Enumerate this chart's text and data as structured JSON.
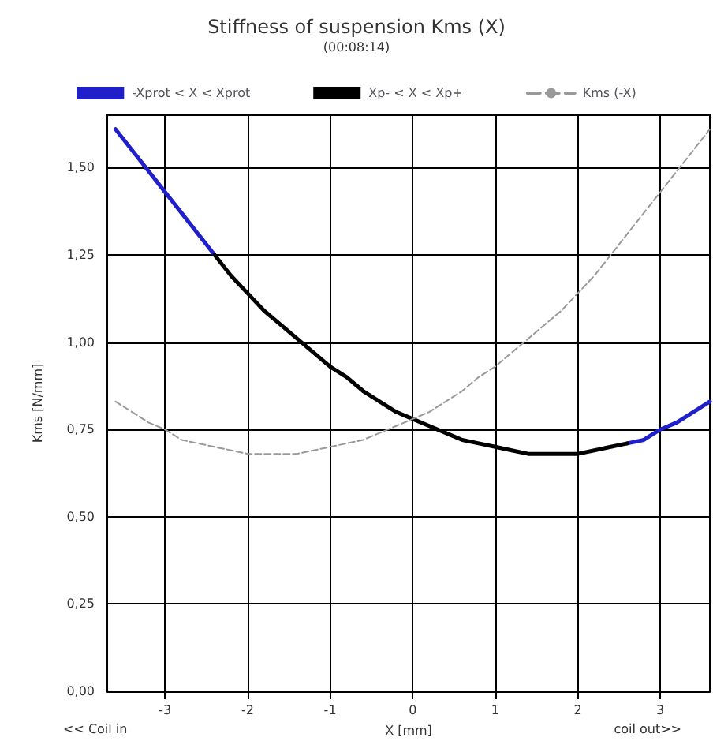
{
  "chart_data": {
    "type": "line",
    "title": "Stiffness of suspension Kms (X)",
    "subtitle": "(00:08:14)",
    "xlabel": "X [mm]",
    "ylabel": "Kms [N/mm]",
    "annotations": [
      "<< Coil in",
      "coil out>>"
    ],
    "x": [
      -3.6,
      -3.4,
      -3.2,
      -3.0,
      -2.8,
      -2.6,
      -2.4,
      -2.2,
      -2.0,
      -1.8,
      -1.6,
      -1.4,
      -1.2,
      -1.0,
      -0.8,
      -0.6,
      -0.4,
      -0.2,
      0,
      0.2,
      0.4,
      0.6,
      0.8,
      1.0,
      1.2,
      1.4,
      1.6,
      1.8,
      2.0,
      2.2,
      2.4,
      2.6,
      2.8,
      3.0,
      3.2,
      3.4,
      3.6
    ],
    "series": [
      {
        "name": "-Xprot < X < Xprot",
        "color": "#1f1fcc",
        "values": [
          1.61,
          1.55,
          1.49,
          1.43,
          1.37,
          1.31,
          1.25,
          null,
          null,
          null,
          null,
          null,
          null,
          null,
          null,
          null,
          null,
          null,
          null,
          null,
          null,
          null,
          null,
          null,
          null,
          null,
          null,
          null,
          null,
          null,
          null,
          0.71,
          0.72,
          0.75,
          0.77,
          0.8,
          0.83
        ]
      },
      {
        "name": "Xp- < X < Xp+",
        "color": "#000000",
        "values": [
          null,
          null,
          null,
          null,
          null,
          null,
          1.25,
          1.19,
          1.14,
          1.09,
          1.05,
          1.01,
          0.97,
          0.93,
          0.9,
          0.86,
          0.83,
          0.8,
          0.78,
          0.76,
          0.74,
          0.72,
          0.71,
          0.7,
          0.69,
          0.68,
          0.68,
          0.68,
          0.68,
          0.69,
          0.7,
          0.71,
          null,
          null,
          null,
          null,
          null
        ]
      },
      {
        "name": "Kms (-X)",
        "color": "#999999",
        "line_style": "dashed",
        "values": [
          0.83,
          0.8,
          0.77,
          0.75,
          0.72,
          0.71,
          0.7,
          0.69,
          0.68,
          0.68,
          0.68,
          0.68,
          0.69,
          0.7,
          0.71,
          0.72,
          0.74,
          0.76,
          0.78,
          0.8,
          0.83,
          0.86,
          0.9,
          0.93,
          0.97,
          1.01,
          1.05,
          1.09,
          1.14,
          1.19,
          1.25,
          1.31,
          1.37,
          1.43,
          1.49,
          1.55,
          1.61
        ]
      }
    ],
    "xlim": [
      -3.7,
      3.6
    ],
    "xticks": [
      -3,
      -2,
      -1,
      0,
      1,
      2,
      3
    ],
    "ylim": [
      0,
      1.65
    ],
    "yticks": [
      {
        "value": 0,
        "label": "0,00"
      },
      {
        "value": 0.25,
        "label": "0,25"
      },
      {
        "value": 0.5,
        "label": "0,50"
      },
      {
        "value": 0.75,
        "label": "0,75"
      },
      {
        "value": 1,
        "label": "1,00"
      },
      {
        "value": 1.25,
        "label": "1,25"
      },
      {
        "value": 1.5,
        "label": "1,50"
      }
    ],
    "grid": true,
    "legend": "top",
    "marker": "none",
    "line_style": "solid"
  }
}
